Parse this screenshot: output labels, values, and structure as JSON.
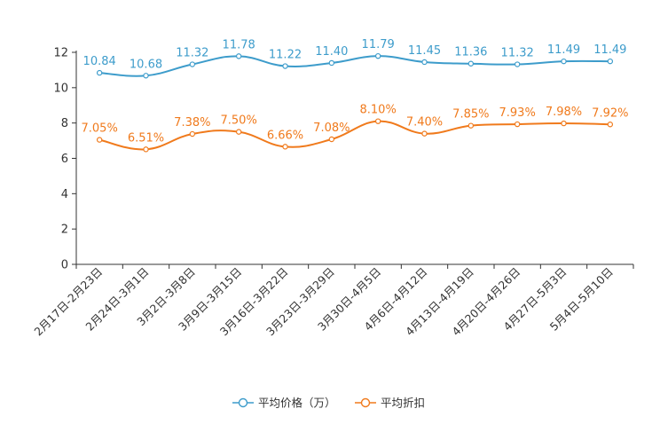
{
  "chart_data": {
    "type": "line",
    "title": "",
    "xlabel": "",
    "ylabel": "",
    "ylim": [
      0,
      12
    ],
    "yticks": [
      0,
      2,
      4,
      6,
      8,
      10,
      12
    ],
    "ytick_labels": [
      "0",
      "2",
      "4",
      "6",
      "8",
      "10",
      "12"
    ],
    "categories": [
      "2月17日-2月23日",
      "2月24日-3月1日",
      "3月2日-3月8日",
      "3月9日-3月15日",
      "3月16日-3月22日",
      "3月23日-3月29日",
      "3月30日-4月5日",
      "4月6日-4月12日",
      "4月13日-4月19日",
      "4月20日-4月26日",
      "4月27日-5月3日",
      "5月4日-5月10日"
    ],
    "legend_position": "bottom-center",
    "series": [
      {
        "name": "平均价格（万）",
        "color": "#3d9ccb",
        "values": [
          10.84,
          10.68,
          11.32,
          11.78,
          11.22,
          11.4,
          11.79,
          11.45,
          11.36,
          11.32,
          11.49,
          11.49
        ],
        "labels": [
          "10.84",
          "10.68",
          "11.32",
          "11.78",
          "11.22",
          "11.40",
          "11.79",
          "11.45",
          "11.36",
          "11.32",
          "11.49",
          "11.49"
        ]
      },
      {
        "name": "平均折扣",
        "color": "#f07a1c",
        "values": [
          7.05,
          6.51,
          7.38,
          7.5,
          6.66,
          7.08,
          8.1,
          7.4,
          7.85,
          7.93,
          7.98,
          7.92
        ],
        "labels": [
          "7.05%",
          "6.51%",
          "7.38%",
          "7.50%",
          "6.66%",
          "7.08%",
          "8.10%",
          "7.40%",
          "7.85%",
          "7.93%",
          "7.98%",
          "7.92%"
        ]
      }
    ]
  }
}
